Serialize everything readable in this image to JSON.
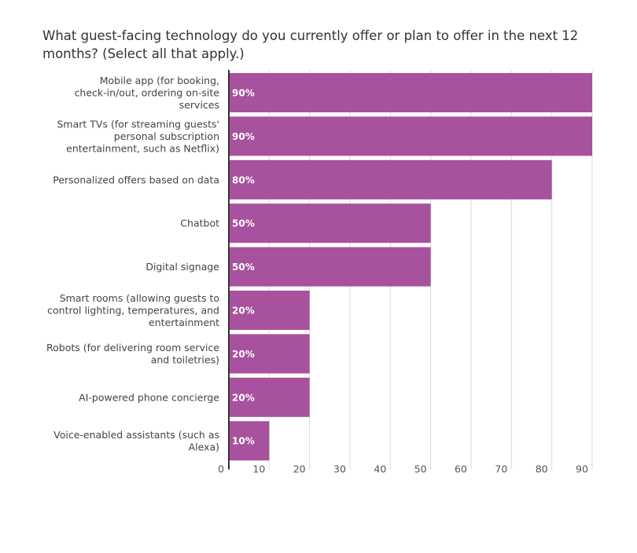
{
  "chart_data": {
    "type": "bar",
    "orientation": "horizontal",
    "title": "What guest-facing technology do you currently offer or plan to offer in the next 12 months? (Select all that apply.)",
    "categories": [
      [
        "Mobile app (for booking,",
        "check-in/out, ordering on-site",
        "services"
      ],
      [
        "Smart TVs (for streaming guests'",
        "personal subscription",
        "entertainment, such as Netflix)"
      ],
      [
        "Personalized offers based on data"
      ],
      [
        "Chatbot"
      ],
      [
        "Digital signage"
      ],
      [
        "Smart rooms (allowing guests to",
        "control lighting, temperatures, and",
        "entertainment"
      ],
      [
        "Robots (for delivering room service",
        "and toiletries)"
      ],
      [
        "AI-powered phone concierge"
      ],
      [
        "Voice-enabled assistants (such as",
        "Alexa)"
      ]
    ],
    "values": [
      90,
      90,
      80,
      50,
      50,
      20,
      20,
      20,
      10
    ],
    "data_labels": [
      "90%",
      "90%",
      "80%",
      "50%",
      "50%",
      "20%",
      "20%",
      "20%",
      "10%"
    ],
    "x_ticks": [
      "0",
      "10",
      "20",
      "30",
      "40",
      "50",
      "60",
      "70",
      "80",
      "90"
    ],
    "xlim": [
      0,
      90
    ],
    "grid": true,
    "legend": "none",
    "colors": {
      "bar": "#a8519e",
      "grid": "#d9d9d9",
      "axis": "#333333"
    }
  }
}
